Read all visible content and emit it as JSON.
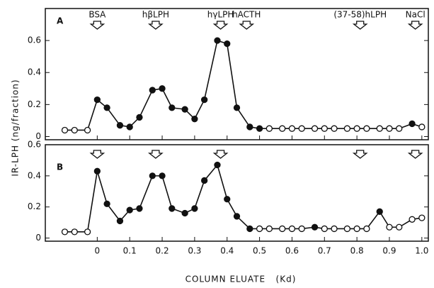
{
  "chart_data": [
    {
      "type": "line",
      "panel_label": "A",
      "ylabel": "IR-LPH (ng/fraction)",
      "x": [
        -0.1,
        -0.07,
        -0.03,
        0,
        0.03,
        0.07,
        0.1,
        0.13,
        0.17,
        0.2,
        0.23,
        0.27,
        0.3,
        0.33,
        0.37,
        0.4,
        0.43,
        0.47,
        0.5,
        0.53,
        0.57,
        0.6,
        0.63,
        0.67,
        0.7,
        0.73,
        0.77,
        0.8,
        0.83,
        0.87,
        0.9,
        0.93,
        0.97,
        1.0
      ],
      "series": [
        {
          "color": "#111111",
          "values": [
            0.04,
            0.04,
            0.04,
            0.23,
            0.18,
            0.07,
            0.06,
            0.12,
            0.29,
            0.3,
            0.18,
            0.17,
            0.11,
            0.23,
            0.6,
            0.58,
            0.18,
            0.06,
            0.05,
            0.05,
            0.05,
            0.05,
            0.05,
            0.05,
            0.05,
            0.05,
            0.05,
            0.05,
            0.05,
            0.05,
            0.05,
            0.05,
            0.08,
            0.06
          ],
          "filled": [
            false,
            false,
            false,
            true,
            true,
            true,
            true,
            true,
            true,
            true,
            true,
            true,
            true,
            true,
            true,
            true,
            true,
            true,
            true,
            false,
            false,
            false,
            false,
            false,
            false,
            false,
            false,
            false,
            false,
            false,
            false,
            false,
            true,
            false
          ]
        }
      ],
      "annotations": [
        {
          "label": "BSA",
          "x": 0
        },
        {
          "label": "hβLPH",
          "x": 0.18
        },
        {
          "label": "hγLPH",
          "x": 0.38
        },
        {
          "label": "hACTH",
          "x": 0.46
        },
        {
          "label": "(37-58)hLPH",
          "x": 0.81
        },
        {
          "label": "NaCl",
          "x": 0.98
        }
      ],
      "xlim": [
        -0.16,
        1.02
      ],
      "ylim": [
        -0.02,
        0.8
      ],
      "yticks": [
        0,
        0.2,
        0.4,
        0.6
      ]
    },
    {
      "type": "line",
      "panel_label": "B",
      "xlabel": "COLUMN ELUATE   (Kd)",
      "x": [
        -0.1,
        -0.07,
        -0.03,
        0,
        0.03,
        0.07,
        0.1,
        0.13,
        0.17,
        0.2,
        0.23,
        0.27,
        0.3,
        0.33,
        0.37,
        0.4,
        0.43,
        0.47,
        0.5,
        0.53,
        0.57,
        0.6,
        0.63,
        0.67,
        0.7,
        0.73,
        0.77,
        0.8,
        0.83,
        0.87,
        0.9,
        0.93,
        0.97,
        1.0
      ],
      "series": [
        {
          "color": "#111111",
          "values": [
            0.04,
            0.04,
            0.04,
            0.43,
            0.22,
            0.11,
            0.18,
            0.19,
            0.4,
            0.4,
            0.19,
            0.16,
            0.19,
            0.37,
            0.47,
            0.25,
            0.14,
            0.06,
            0.06,
            0.06,
            0.06,
            0.06,
            0.06,
            0.07,
            0.06,
            0.06,
            0.06,
            0.06,
            0.06,
            0.17,
            0.07,
            0.07,
            0.12,
            0.13
          ],
          "filled": [
            false,
            false,
            false,
            true,
            true,
            true,
            true,
            true,
            true,
            true,
            true,
            true,
            true,
            true,
            true,
            true,
            true,
            true,
            false,
            false,
            false,
            false,
            false,
            true,
            false,
            false,
            false,
            false,
            false,
            true,
            false,
            false,
            false,
            false
          ]
        }
      ],
      "arrows": [
        0,
        0.18,
        0.38,
        0.81,
        0.98
      ],
      "xlim": [
        -0.16,
        1.02
      ],
      "ylim": [
        -0.02,
        0.6
      ],
      "yticks": [
        0,
        0.2,
        0.4,
        0.6
      ],
      "xticks": [
        0,
        0.1,
        0.2,
        0.3,
        0.4,
        0.5,
        0.6,
        0.7,
        0.8,
        0.9,
        {
          "value": 1,
          "label": "1.0"
        }
      ]
    }
  ]
}
